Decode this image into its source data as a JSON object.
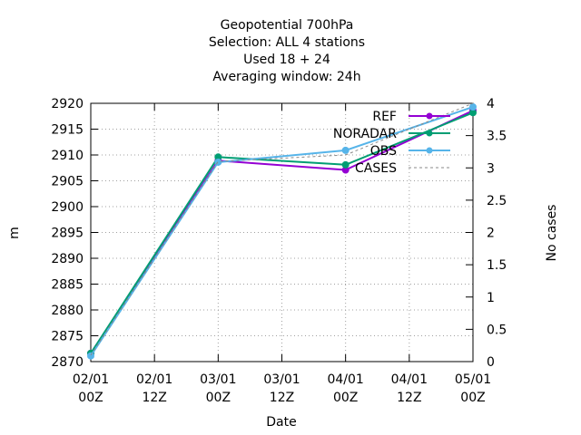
{
  "chart_data": {
    "type": "line",
    "title_lines": [
      "Geopotential 700hPa",
      "Selection: ALL      4 stations",
      "Used  18 + 24",
      "Averaging window: 24h"
    ],
    "xlabel": "Date",
    "ylabel": "m",
    "y2label": "No cases",
    "x_ticks": [
      {
        "top": "02/01",
        "bottom": "00Z"
      },
      {
        "top": "02/01",
        "bottom": "12Z"
      },
      {
        "top": "03/01",
        "bottom": "00Z"
      },
      {
        "top": "03/01",
        "bottom": "12Z"
      },
      {
        "top": "04/01",
        "bottom": "00Z"
      },
      {
        "top": "04/01",
        "bottom": "12Z"
      },
      {
        "top": "05/01",
        "bottom": "00Z"
      }
    ],
    "x_range_hours": [
      0,
      72
    ],
    "ylim": [
      2870,
      2920
    ],
    "y_ticks": [
      2870,
      2875,
      2880,
      2885,
      2890,
      2895,
      2900,
      2905,
      2910,
      2915,
      2920
    ],
    "y2lim": [
      0,
      4
    ],
    "y2_ticks": [
      "0",
      "0.5",
      "1",
      "1.5",
      "2",
      "2.5",
      "3",
      "3.5",
      "4"
    ],
    "grid": true,
    "legend_position": "top-right",
    "series": [
      {
        "name": "REF",
        "color": "#9400d3",
        "marker": true,
        "axis": "y",
        "x_hours": [
          0,
          24,
          48,
          72
        ],
        "values": [
          2871.6,
          2908.9,
          2907.1,
          2918.6
        ]
      },
      {
        "name": "NORADAR",
        "color": "#009e73",
        "marker": true,
        "axis": "y",
        "x_hours": [
          0,
          24,
          48,
          72
        ],
        "values": [
          2871.6,
          2909.6,
          2908.1,
          2918.2
        ]
      },
      {
        "name": "OBS",
        "color": "#56b4e9",
        "marker": true,
        "axis": "y",
        "x_hours": [
          0,
          24,
          48,
          72
        ],
        "values": [
          2871.1,
          2908.6,
          2910.9,
          2919.3
        ]
      },
      {
        "name": "CASES",
        "color": "#888888",
        "dashed": true,
        "axis": "y2",
        "x_hours": [
          0,
          24,
          48,
          72
        ],
        "values": [
          0.1,
          3.1,
          3.2,
          4.0
        ]
      }
    ]
  }
}
